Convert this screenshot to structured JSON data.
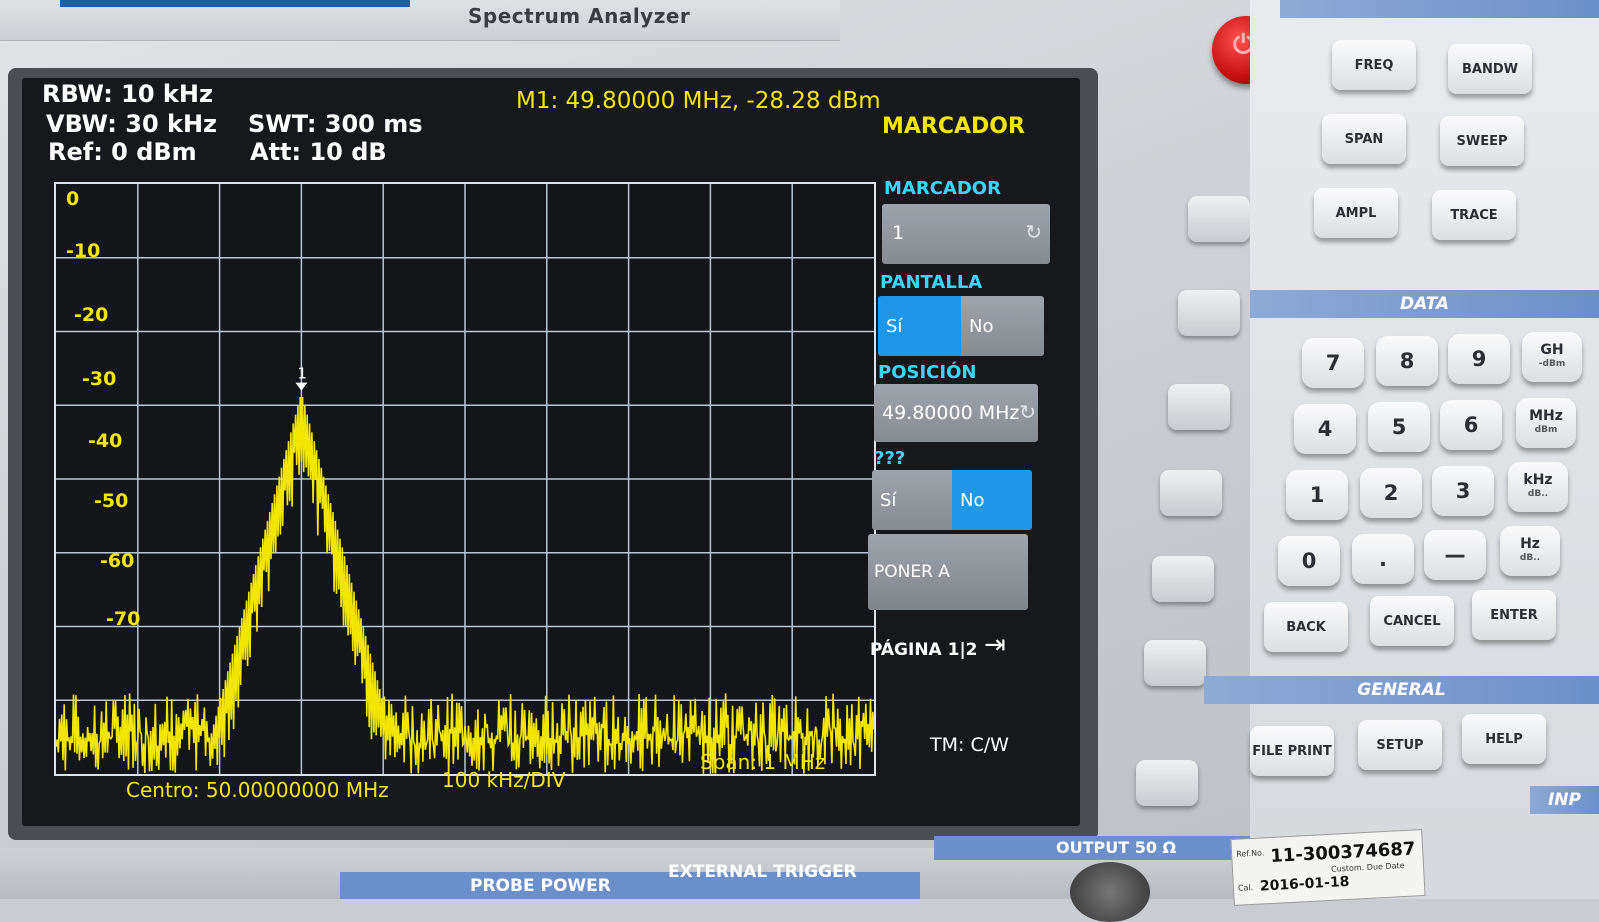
{
  "instrument": {
    "title": "Spectrum Analyzer"
  },
  "status": {
    "rbw": "RBW: 10 kHz",
    "vbw": "VBW: 30 kHz",
    "ref": "Ref: 0 dBm",
    "swt": "SWT: 300 ms",
    "att": "Att: 10 dB",
    "marker_readout": "M1: 49.80000 MHz, -28.28 dBm"
  },
  "menu": {
    "title": "MARCADOR",
    "marcador_label": "MARCADOR",
    "marcador_value": "1",
    "pantalla_label": "PANTALLA",
    "pantalla_yes": "Sí",
    "pantalla_no": "No",
    "pantalla_selected": "Sí",
    "posicion_label": "POSICIÓN",
    "posicion_value": "49.80000 MHz",
    "unknown_label": "???",
    "unknown_yes": "Sí",
    "unknown_no": "No",
    "unknown_selected": "No",
    "poner_label": "PONER A",
    "pagina": "PÁGINA 1|2"
  },
  "plot": {
    "y_ticks": [
      "0",
      "-10",
      "-20",
      "-30",
      "-40",
      "-50",
      "-60",
      "-70"
    ],
    "center": "Centro: 50.00000000 MHz",
    "div": "100 kHz/DIV",
    "span": "Span: 1 MHz",
    "trace_mode": "TM: C/W",
    "marker_label": "1",
    "trace_color": "#f2e600",
    "grid_color": "#b8c6d6"
  },
  "chart_data": {
    "type": "line",
    "x_unit": "MHz",
    "y_unit": "dBm",
    "xlim": [
      49.5,
      50.5
    ],
    "ylim": [
      -80,
      0
    ],
    "grid": true,
    "peak": {
      "x": 49.8,
      "y": -28.28
    },
    "noise_floor_range": [
      -80,
      -69
    ]
  },
  "keys": {
    "freq": "FREQ",
    "bandw": "BANDW",
    "span": "SPAN",
    "sweep": "SWEEP",
    "ampl": "AMPL",
    "trace": "TRACE",
    "data_section": "DATA",
    "n7": "7",
    "n8": "8",
    "n9": "9",
    "n4": "4",
    "n5": "5",
    "n6": "6",
    "n1": "1",
    "n2": "2",
    "n3": "3",
    "n0": "0",
    "dot": ".",
    "minus": "—",
    "ghz": "GH",
    "ghz_sub": "-dBm",
    "mhz": "MHz",
    "mhz_sub": "dBm",
    "khz": "kHz",
    "khz_sub": "dB..",
    "hz": "Hz",
    "hz_sub": "dB..",
    "back": "BACK",
    "cancel": "CANCEL",
    "enter": "ENTER",
    "general_section": "GENERAL",
    "file_print": "FILE PRINT",
    "setup": "SETUP",
    "help": "HELP",
    "inp_section": "INP"
  },
  "panel": {
    "probe_power": "PROBE POWER",
    "external_trigger": "EXTERNAL TRIGGER",
    "output": "OUTPUT 50 Ω",
    "sticker_refno": "11-300374687",
    "sticker_ref_label": "Ref.No.",
    "sticker_cal": "Cal.",
    "sticker_date": "2016-01-18",
    "sticker_custom": "Custom. Due Date"
  }
}
